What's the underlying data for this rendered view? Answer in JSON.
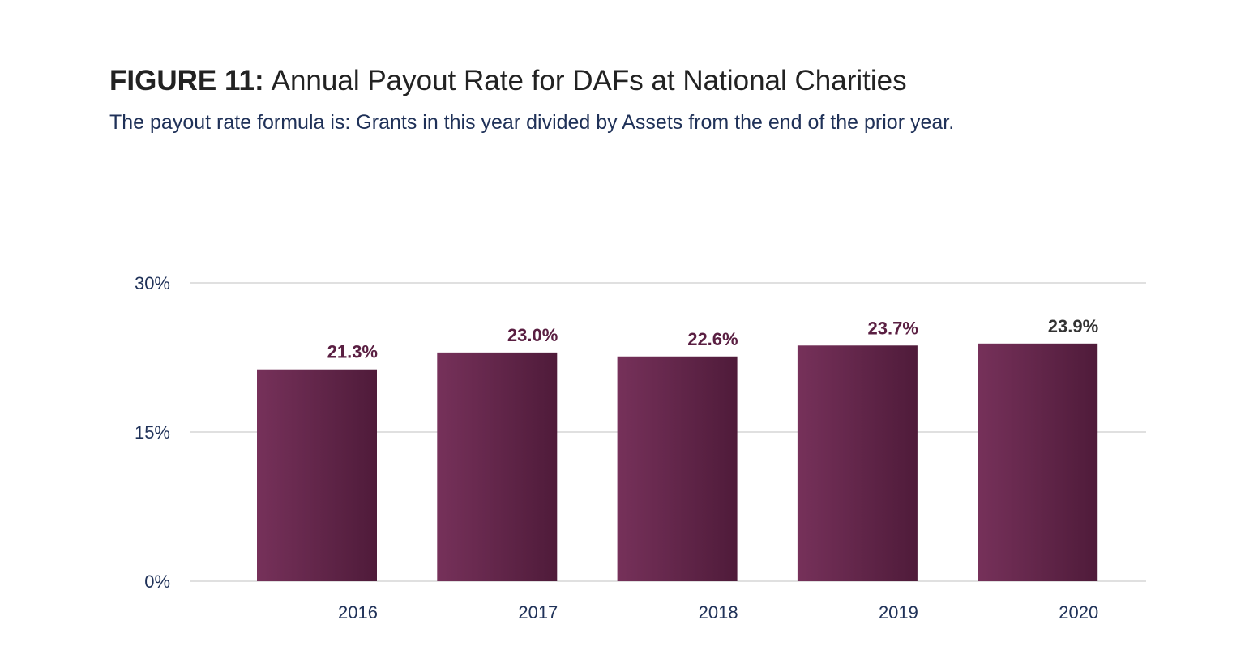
{
  "chart_data": {
    "type": "bar",
    "title_prefix": "FIGURE 11:",
    "title": "Annual Payout Rate for DAFs at National Charities",
    "subtitle": "The payout rate formula is: Grants in this year divided by Assets from the end of the prior year.",
    "categories": [
      "2016",
      "2017",
      "2018",
      "2019",
      "2020"
    ],
    "values": [
      21.3,
      23.0,
      22.6,
      23.7,
      23.9
    ],
    "data_labels": [
      "21.3%",
      "23.0%",
      "22.6%",
      "23.7%",
      "23.9%"
    ],
    "ylim": [
      0,
      30
    ],
    "yticks": [
      0,
      15,
      30
    ],
    "ytick_labels": [
      "0%",
      "15%",
      "30%"
    ],
    "xlabel": "",
    "ylabel": "",
    "grid": true,
    "colors": {
      "bar_light": "#76315a",
      "bar_dark": "#4f1b3a",
      "label": "#5a1f42",
      "label_last": "#333333",
      "grid": "#d6d6d6"
    }
  }
}
